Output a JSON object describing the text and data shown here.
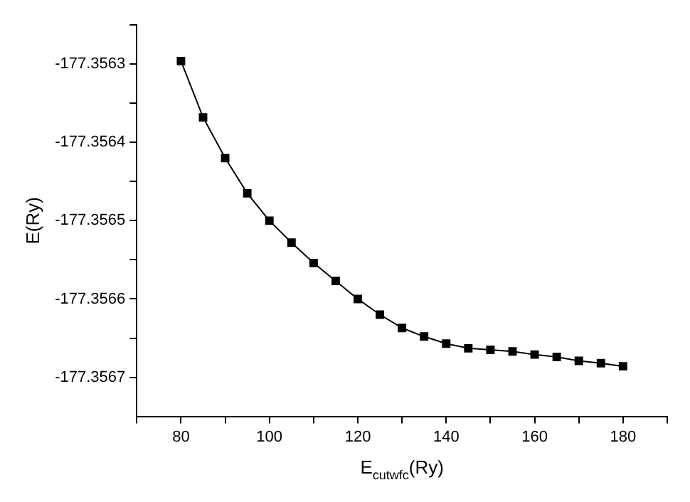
{
  "chart_data": {
    "type": "line",
    "xlabel": "E$_{cutwfc}$(Ry)",
    "ylabel": "E(Ry)",
    "x": [
      80,
      85,
      90,
      95,
      100,
      105,
      110,
      115,
      120,
      125,
      130,
      135,
      140,
      145,
      150,
      155,
      160,
      165,
      170,
      175,
      180
    ],
    "series": [
      {
        "color": "#000000",
        "values": [
          -177.356296,
          -177.356368,
          -177.35642,
          -177.356465,
          -177.3565,
          -177.356528,
          -177.356554,
          -177.356577,
          -177.3566,
          -177.35662,
          -177.356637,
          -177.356648,
          -177.356657,
          -177.356663,
          -177.356665,
          -177.356667,
          -177.356671,
          -177.356674,
          -177.356679,
          -177.356682,
          -177.356686
        ]
      }
    ],
    "xlim": [
      70,
      190
    ],
    "xticks": [
      {
        "value": 70,
        "label": null
      },
      80,
      {
        "value": 90,
        "label": null
      },
      100,
      {
        "value": 110,
        "label": null
      },
      120,
      {
        "value": 130,
        "label": null
      },
      140,
      {
        "value": 150,
        "label": null
      },
      160,
      {
        "value": 170,
        "label": null
      },
      180,
      {
        "value": 190,
        "label": null
      }
    ],
    "ylim": [
      -177.35675,
      -177.35625
    ],
    "yticks": [
      {
        "value": -177.35625,
        "label": null
      },
      {
        "value": -177.3563,
        "label": "-177.3563"
      },
      {
        "value": -177.35635,
        "label": null
      },
      {
        "value": -177.3564,
        "label": "-177.3564"
      },
      {
        "value": -177.35645,
        "label": null
      },
      {
        "value": -177.3565,
        "label": "-177.3565"
      },
      {
        "value": -177.35655,
        "label": null
      },
      {
        "value": -177.3566,
        "label": "-177.3566"
      },
      {
        "value": -177.35665,
        "label": null
      },
      {
        "value": -177.3567,
        "label": "-177.3567"
      }
    ],
    "grid": false,
    "legend": false,
    "marker": "square",
    "line_style": "solid"
  }
}
